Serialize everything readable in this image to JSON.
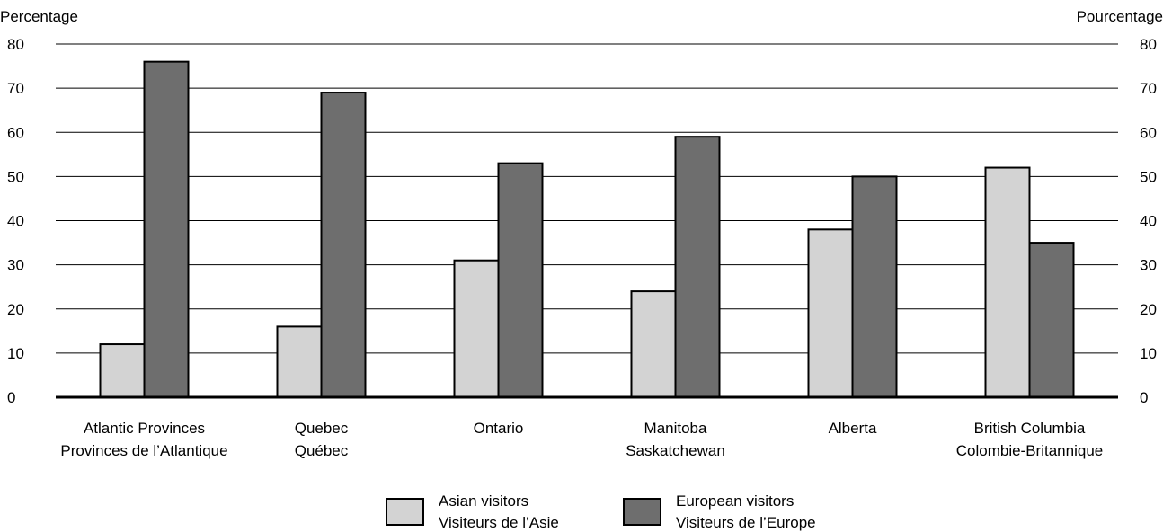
{
  "chart_data": {
    "type": "bar",
    "ylabel_left": "Percentage",
    "ylabel_right": "Pourcentage",
    "ylim": [
      0,
      80
    ],
    "yticks": [
      0,
      10,
      20,
      30,
      40,
      50,
      60,
      70,
      80
    ],
    "grid": true,
    "legend_position": "bottom",
    "categories": [
      {
        "line1": "Atlantic Provinces",
        "line2": "Provinces de l’Atlantique"
      },
      {
        "line1": "Quebec",
        "line2": "Québec"
      },
      {
        "line1": "Ontario",
        "line2": ""
      },
      {
        "line1": "Manitoba",
        "line2": "Saskatchewan"
      },
      {
        "line1": "Alberta",
        "line2": ""
      },
      {
        "line1": "British Columbia",
        "line2": "Colombie-Britannique"
      }
    ],
    "series": [
      {
        "name": "Asian visitors",
        "name_fr": "Visiteurs de l’Asie",
        "color": "#d3d3d3",
        "values": [
          12,
          16,
          31,
          24,
          38,
          52
        ]
      },
      {
        "name": "European visitors",
        "name_fr": "Visiteurs de l’Europe",
        "color": "#6e6e6e",
        "values": [
          76,
          69,
          53,
          59,
          50,
          35
        ]
      }
    ]
  }
}
